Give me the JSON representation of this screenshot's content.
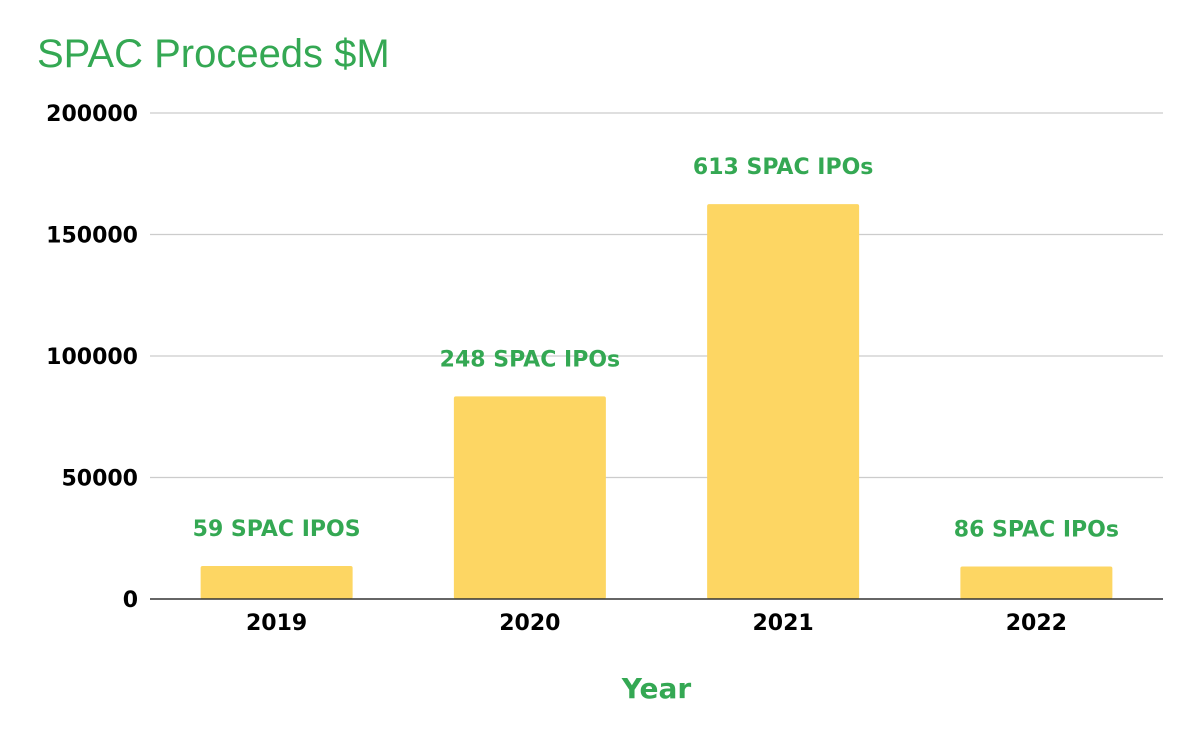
{
  "colors": {
    "accent": "#34a853",
    "bar": "#fdd663",
    "grid": "#cccccc",
    "axis": "#333333",
    "text": "#000000"
  },
  "chart_data": {
    "type": "bar",
    "title": "SPAC Proceeds $M",
    "xlabel": "Year",
    "ylabel": "",
    "categories": [
      "2019",
      "2020",
      "2021",
      "2022"
    ],
    "values": [
      13600,
      83400,
      162500,
      13400
    ],
    "data_labels": [
      "59 SPAC IPOS",
      "248 SPAC IPOs",
      "613 SPAC IPOs",
      "86 SPAC IPOs"
    ],
    "ylim": [
      0,
      200000
    ],
    "yticks": [
      0,
      50000,
      100000,
      150000,
      200000
    ],
    "grid": true,
    "legend": "none"
  }
}
